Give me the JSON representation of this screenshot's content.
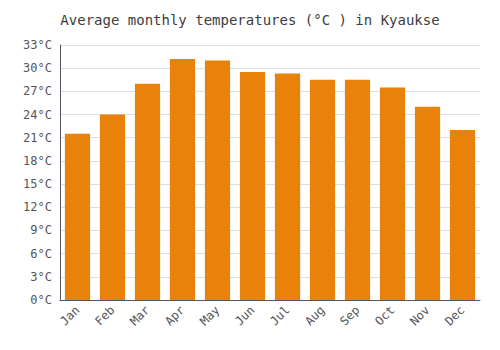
{
  "chart_data": {
    "type": "bar",
    "title": "Average monthly temperatures (°C ) in Kyaukse",
    "categories": [
      "Jan",
      "Feb",
      "Mar",
      "Apr",
      "May",
      "Jun",
      "Jul",
      "Aug",
      "Sep",
      "Oct",
      "Nov",
      "Dec"
    ],
    "values": [
      21.5,
      24.0,
      28.0,
      31.2,
      31.0,
      29.5,
      29.3,
      28.5,
      28.5,
      27.5,
      25.0,
      22.0
    ],
    "color": "#E8820A",
    "ylim": [
      0,
      33
    ],
    "yticks": [
      {
        "value": 0,
        "label": "0°C"
      },
      {
        "value": 3,
        "label": "3°C"
      },
      {
        "value": 6,
        "label": "6°C"
      },
      {
        "value": 9,
        "label": "9°C"
      },
      {
        "value": 12,
        "label": "12°C"
      },
      {
        "value": 15,
        "label": "15°C"
      },
      {
        "value": 18,
        "label": "18°C"
      },
      {
        "value": 21,
        "label": "21°C"
      },
      {
        "value": 24,
        "label": "24°C"
      },
      {
        "value": 27,
        "label": "27°C"
      },
      {
        "value": 30,
        "label": "30°C"
      },
      {
        "value": 33,
        "label": "33°C"
      }
    ],
    "grid": true
  }
}
